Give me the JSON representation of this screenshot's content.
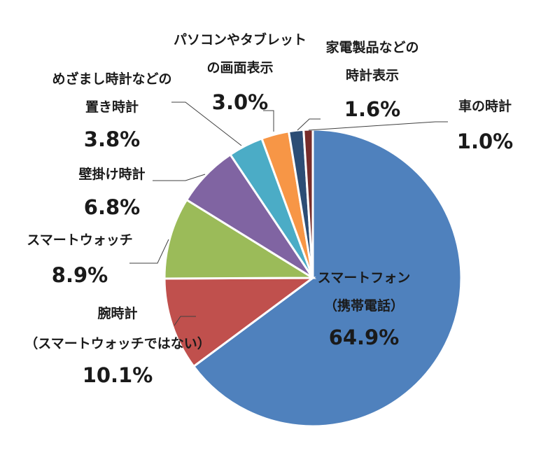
{
  "chart_data": {
    "type": "pie",
    "start": "12 o'clock",
    "direction": "clockwise",
    "slices": [
      {
        "label_lines": [
          "スマートフォン",
          "（携帯電話）"
        ],
        "value": 64.9,
        "value_label": "64.9%",
        "color": "#4f81bd"
      },
      {
        "label_lines": [
          "腕時計",
          "（スマートウォッチではない）"
        ],
        "value": 10.1,
        "value_label": "10.1%",
        "color": "#c0504d"
      },
      {
        "label_lines": [
          "スマートウォッチ"
        ],
        "value": 8.9,
        "value_label": "8.9%",
        "color": "#9bbb59"
      },
      {
        "label_lines": [
          "壁掛け時計"
        ],
        "value": 6.8,
        "value_label": "6.8%",
        "color": "#8064a2"
      },
      {
        "label_lines": [
          "めざまし時計などの",
          "置き時計"
        ],
        "value": 3.8,
        "value_label": "3.8%",
        "color": "#4bacc6"
      },
      {
        "label_lines": [
          "パソコンやタブレット",
          "の画面表示"
        ],
        "value": 3.0,
        "value_label": "3.0%",
        "color": "#f79646"
      },
      {
        "label_lines": [
          "家電製品などの",
          "時計表示"
        ],
        "value": 1.6,
        "value_label": "1.6%",
        "color": "#2c4d75"
      },
      {
        "label_lines": [
          "車の時計"
        ],
        "value": 1.0,
        "value_label": "1.0%",
        "color": "#772c2a"
      }
    ]
  }
}
